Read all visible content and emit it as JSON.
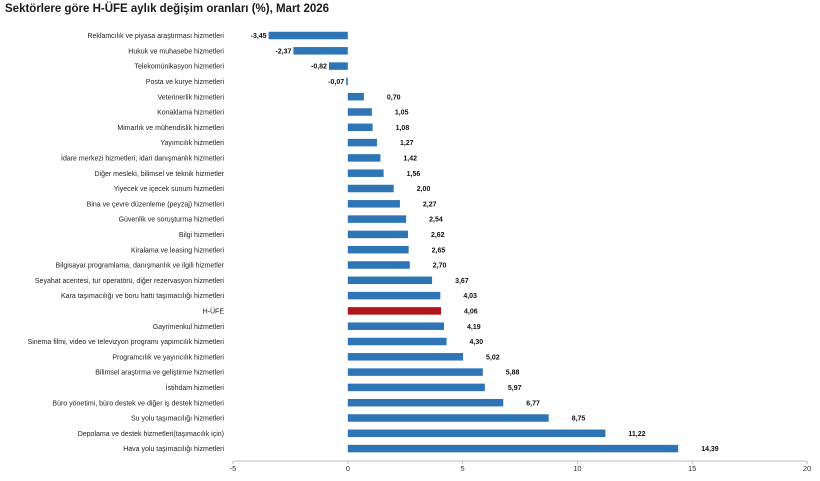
{
  "chart_data": {
    "type": "bar",
    "orientation": "horizontal",
    "title": "Sektörlere göre H-ÜFE aylık değişim oranları (%), Mart 2026",
    "categories": [
      "Reklamcılık ve piyasa araştırması hizmetleri",
      "Hukuk ve muhasebe hizmetleri",
      "Telekomünikasyon hizmetleri",
      "Posta ve kurye hizmetleri",
      "Veterinerlik hizmetleri",
      "Konaklama hizmetleri",
      "Mimarlık ve mühendislik hizmetleri",
      "Yayımcılık hizmetleri",
      "İdare merkezi hizmetleri; idari danışmanlık hizmetleri",
      "Diğer mesleki, bilimsel ve teknik hizmetler",
      "Yiyecek ve içecek sunum hizmetleri",
      "Bina ve çevre düzenleme (peyzaj) hizmetleri",
      "Güvenlik ve soruşturma hizmetleri",
      "Bilgi hizmetleri",
      "Kiralama ve leasing hizmetleri",
      "Bilgisayar programlama, danışmanlık ve ilgili hizmetler",
      "Seyahat acentesi, tur operatörü, diğer rezervasyon hizmetleri",
      "Kara taşımacılığı ve boru hattı taşımacılığı hizmetleri",
      "H-ÜFE",
      "Gayrimenkul hizmetleri",
      "Sinema filmi, video ve televizyon programı yapımcılık hizmetleri",
      "Programcılık ve yayıncılık hizmetleri",
      "Bilimsel araştırma ve geliştirme hizmetleri",
      "İstihdam hizmetleri",
      "Büro yönetimi, büro destek ve diğer iş destek hizmetleri",
      "Su yolu taşımacılığı hizmetleri",
      "Depolama ve destek hizmetleri(taşımacılık için)",
      "Hava yolu taşımacılığı hizmetleri"
    ],
    "values": [
      -3.45,
      -2.37,
      -0.82,
      -0.07,
      0.7,
      1.05,
      1.08,
      1.27,
      1.42,
      1.56,
      2.0,
      2.27,
      2.54,
      2.62,
      2.65,
      2.7,
      3.67,
      4.03,
      4.06,
      4.19,
      4.3,
      5.02,
      5.88,
      5.97,
      6.77,
      8.75,
      11.22,
      14.39
    ],
    "value_labels": [
      "-3,45",
      "-2,37",
      "-0,82",
      "-0,07",
      "0,70",
      "1,05",
      "1,08",
      "1,27",
      "1,42",
      "1,56",
      "2,00",
      "2,27",
      "2,54",
      "2,62",
      "2,65",
      "2,70",
      "3,67",
      "4,03",
      "4,06",
      "4,19",
      "4,30",
      "5,02",
      "5,88",
      "5,97",
      "6,77",
      "8,75",
      "11,22",
      "14,39"
    ],
    "highlight_category": "H-ÜFE",
    "xlim": [
      -5,
      20
    ],
    "x_ticks": [
      -5,
      0,
      5,
      10,
      15,
      20
    ],
    "x_tick_labels": [
      "-5",
      "0",
      "5",
      "10",
      "15",
      "20"
    ],
    "bar_color": "#2e75b6",
    "highlight_color": "#b0151c",
    "grid": false,
    "legend": "none"
  }
}
